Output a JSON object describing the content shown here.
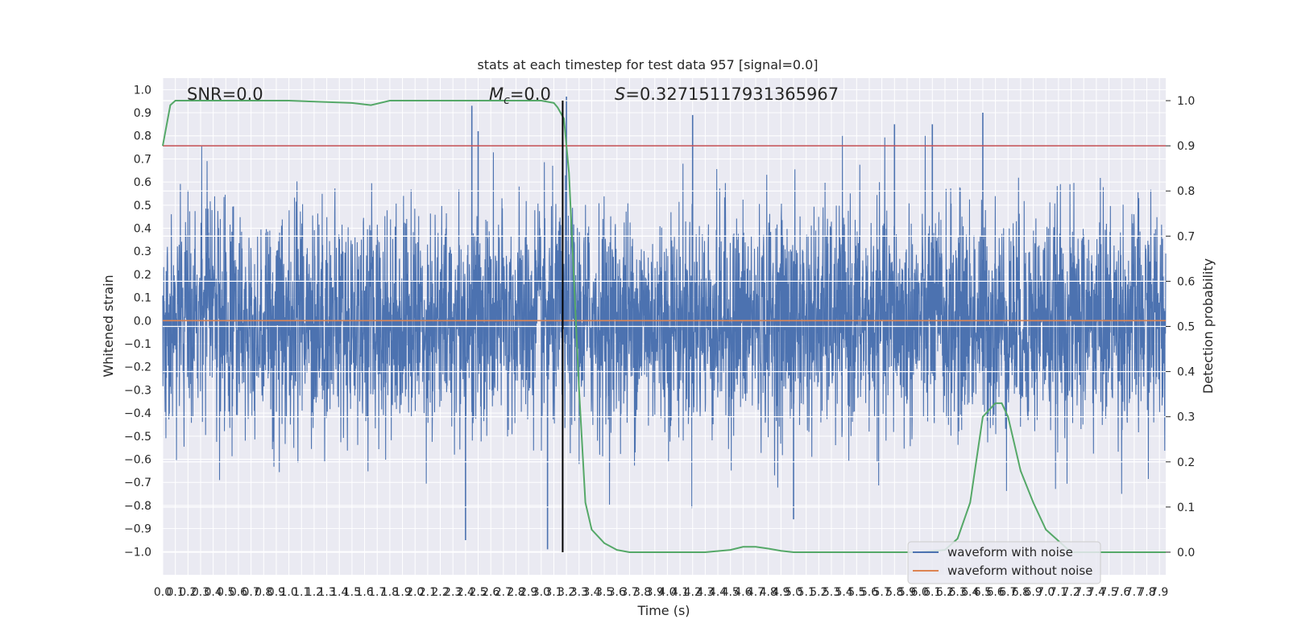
{
  "chart_data": {
    "type": "line",
    "title": "stats at each timestep for test data 957 [signal=0.0]",
    "xlabel": "Time (s)",
    "ylabel": "Whitened strain",
    "ylabel_right": "Detection probability",
    "xlim": [
      0.0,
      7.95
    ],
    "ylim": [
      -1.1,
      1.05
    ],
    "ylim_right": [
      -0.05,
      1.05
    ],
    "x_ticks": [
      0.0,
      0.1,
      0.2,
      0.3,
      0.4,
      0.5,
      0.6,
      0.7,
      0.8,
      0.9,
      1.0,
      1.1,
      1.2,
      1.3,
      1.4,
      1.5,
      1.6,
      1.7,
      1.8,
      1.9,
      2.0,
      2.1,
      2.2,
      2.3,
      2.4,
      2.5,
      2.6,
      2.7,
      2.8,
      2.9,
      3.0,
      3.1,
      3.2,
      3.3,
      3.4,
      3.5,
      3.6,
      3.7,
      3.8,
      3.9,
      4.0,
      4.1,
      4.2,
      4.3,
      4.4,
      4.5,
      4.6,
      4.7,
      4.8,
      4.9,
      5.0,
      5.1,
      5.2,
      5.3,
      5.4,
      5.5,
      5.6,
      5.7,
      5.8,
      5.9,
      6.0,
      6.1,
      6.2,
      6.3,
      6.4,
      6.5,
      6.6,
      6.7,
      6.8,
      6.9,
      7.0,
      7.1,
      7.2,
      7.3,
      7.4,
      7.5,
      7.6,
      7.7,
      7.8,
      7.9
    ],
    "y_ticks": [
      1.0,
      0.9,
      0.8,
      0.7,
      0.6,
      0.5,
      0.4,
      0.3,
      0.2,
      0.1,
      0.0,
      -0.1,
      -0.2,
      -0.3,
      -0.4,
      -0.5,
      -0.6,
      -0.7,
      -0.8,
      -0.9,
      -1.0
    ],
    "y_ticks_right": [
      1.0,
      0.9,
      0.8,
      0.7,
      0.6,
      0.5,
      0.4,
      0.3,
      0.2,
      0.1,
      0.0
    ],
    "annotations": {
      "snr": "SNR=0.0",
      "mc_symbol": "M",
      "mc_sub": "c",
      "mc_value": "=0.0",
      "s_symbol": "S",
      "s_value": "=0.32715117931365967"
    },
    "threshold": 0.9,
    "marker_time": 3.17,
    "series": [
      {
        "name": "waveform with noise",
        "color": "#4c72b0",
        "kind": "noise",
        "amplitude": 0.5,
        "peaks": [
          [
            2.45,
            0.93
          ],
          [
            2.5,
            0.82
          ],
          [
            3.2,
            0.97
          ],
          [
            4.2,
            0.89
          ],
          [
            5.8,
            0.85
          ],
          [
            6.1,
            0.85
          ],
          [
            6.5,
            0.9
          ],
          [
            2.4,
            -0.95
          ],
          [
            3.05,
            -0.99
          ],
          [
            5.0,
            -0.86
          ]
        ]
      },
      {
        "name": "waveform without noise",
        "color": "#dd8452",
        "kind": "constant",
        "value": 0.0
      },
      {
        "name": "detection probability",
        "color": "#55a868",
        "axis": "right",
        "x": [
          0.0,
          0.06,
          0.1,
          0.2,
          0.5,
          1.0,
          1.5,
          1.65,
          1.8,
          2.0,
          2.5,
          3.0,
          3.1,
          3.13,
          3.18,
          3.22,
          3.25,
          3.3,
          3.35,
          3.4,
          3.5,
          3.6,
          3.7,
          3.8,
          4.0,
          4.3,
          4.5,
          4.6,
          4.7,
          4.8,
          4.9,
          5.0,
          5.2,
          5.5,
          6.0,
          6.2,
          6.3,
          6.4,
          6.5,
          6.6,
          6.65,
          6.7,
          6.8,
          6.9,
          7.0,
          7.2,
          7.5,
          7.95
        ],
        "y": [
          0.9,
          0.99,
          1.0,
          1.0,
          1.0,
          1.0,
          0.995,
          0.99,
          1.0,
          1.0,
          1.0,
          1.0,
          0.995,
          0.985,
          0.96,
          0.84,
          0.66,
          0.36,
          0.11,
          0.05,
          0.02,
          0.005,
          0.0,
          0.0,
          0.0,
          0.0,
          0.005,
          0.012,
          0.012,
          0.008,
          0.003,
          0.0,
          0.0,
          0.0,
          0.0,
          0.005,
          0.03,
          0.11,
          0.3,
          0.33,
          0.33,
          0.3,
          0.18,
          0.11,
          0.05,
          0.0,
          0.0,
          0.0
        ]
      },
      {
        "name": "threshold",
        "color": "#c44e52",
        "axis": "right",
        "kind": "hline"
      }
    ],
    "legend": {
      "placement": "lower right",
      "items": [
        "waveform with noise",
        "waveform without noise"
      ]
    },
    "grid": true
  }
}
